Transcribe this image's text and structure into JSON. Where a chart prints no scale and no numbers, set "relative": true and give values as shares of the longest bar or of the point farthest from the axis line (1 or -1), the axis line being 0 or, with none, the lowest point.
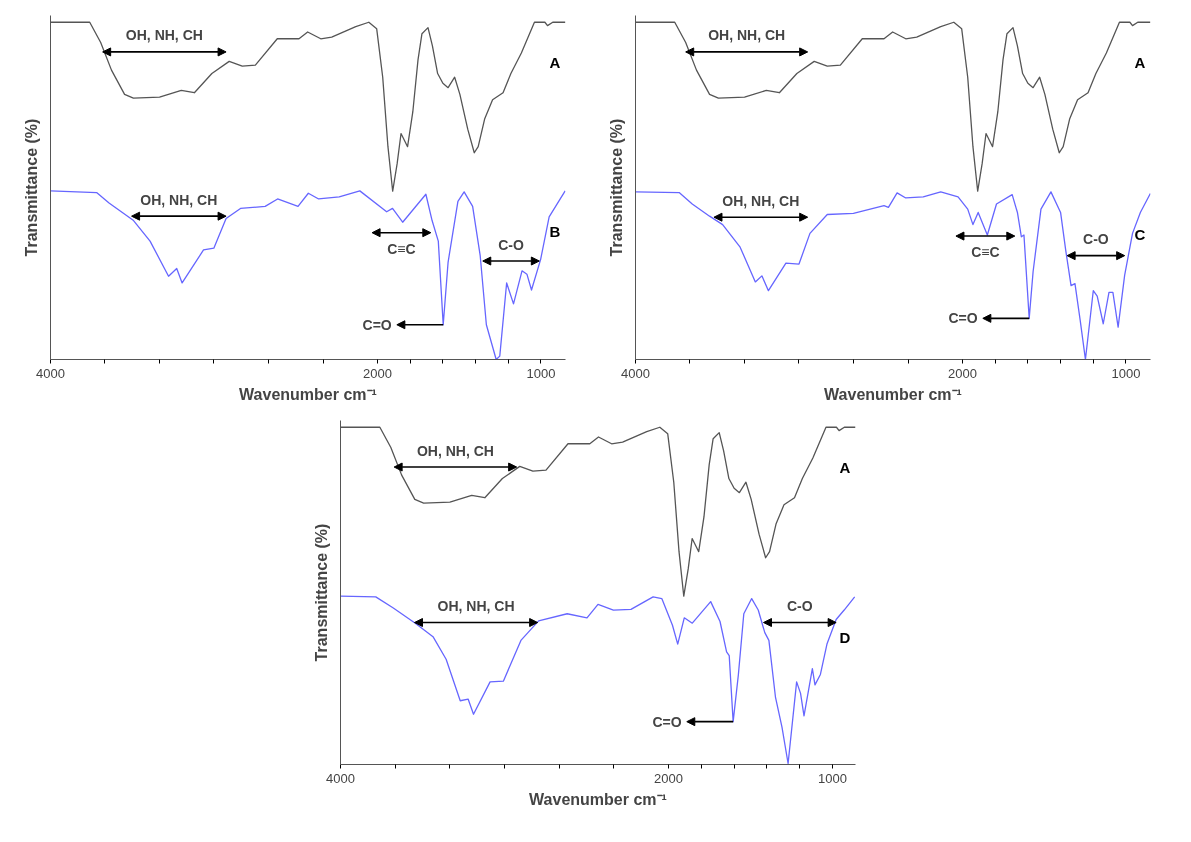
{
  "chart_data": [
    {
      "type": "line",
      "xlabel": "Wavenumber cm⁻¹",
      "ylabel": "Transmittance (%)",
      "relative": true,
      "xlim": [
        4000,
        850
      ],
      "xticks": [
        4000,
        {
          "value": 3667,
          "label": null
        },
        {
          "value": 3333,
          "label": null
        },
        {
          "value": 3000,
          "label": null
        },
        {
          "value": 2667,
          "label": null
        },
        {
          "value": 2333,
          "label": null
        },
        2000,
        {
          "value": 1800,
          "label": null
        },
        {
          "value": 1600,
          "label": null
        },
        {
          "value": 1400,
          "label": null
        },
        {
          "value": 1200,
          "label": null
        },
        1000
      ],
      "series": [
        {
          "name": "A",
          "color": "#555555",
          "x": [
            4000,
            3760,
            3693,
            3627,
            3547,
            3493,
            3333,
            3200,
            3120,
            3013,
            2907,
            2827,
            2747,
            2613,
            2480,
            2427,
            2347,
            2280,
            2133,
            2053,
            2005,
            1968,
            1936,
            1907,
            1880,
            1856,
            1816,
            1784,
            1752,
            1728,
            1691,
            1664,
            1632,
            1600,
            1568,
            1528,
            1496,
            1448,
            1408,
            1384,
            1344,
            1296,
            1232,
            1184,
            1120,
            1040,
            976,
            960,
            928,
            851
          ],
          "values": [
            1.0,
            1.0,
            0.94,
            0.858,
            0.786,
            0.775,
            0.778,
            0.798,
            0.791,
            0.848,
            0.884,
            0.87,
            0.873,
            0.951,
            0.951,
            0.971,
            0.951,
            0.956,
            0.987,
            1.0,
            0.981,
            0.837,
            0.631,
            0.499,
            0.58,
            0.67,
            0.631,
            0.734,
            0.889,
            0.966,
            0.984,
            0.93,
            0.848,
            0.819,
            0.806,
            0.837,
            0.786,
            0.683,
            0.613,
            0.631,
            0.714,
            0.77,
            0.791,
            0.848,
            0.909,
            1.0,
            1.0,
            0.99,
            1.0,
            1.0
          ]
        },
        {
          "name": "B",
          "color": "#6666ff",
          "x": [
            4000,
            3718,
            3642,
            3492,
            3391,
            3278,
            3228,
            3195,
            3064,
            3001,
            2926,
            2838,
            2687,
            2611,
            2486,
            2423,
            2360,
            2234,
            2108,
            1944,
            1908,
            1846,
            1704,
            1666,
            1628,
            1598,
            1568,
            1508,
            1470,
            1418,
            1372,
            1334,
            1274,
            1252,
            1210,
            1168,
            1116,
            1086,
            1058,
            1002,
            950,
            852
          ],
          "values": [
            0.5,
            0.495,
            0.464,
            0.412,
            0.351,
            0.247,
            0.27,
            0.227,
            0.325,
            0.33,
            0.418,
            0.448,
            0.454,
            0.476,
            0.454,
            0.493,
            0.476,
            0.482,
            0.5,
            0.438,
            0.448,
            0.407,
            0.49,
            0.412,
            0.351,
            0.103,
            0.289,
            0.469,
            0.497,
            0.454,
            0.309,
            0.103,
            0,
            0.01,
            0.227,
            0.165,
            0.263,
            0.253,
            0.206,
            0.297,
            0.423,
            0.5
          ]
        }
      ],
      "annotations": [
        "OH, NH, CH",
        "OH, NH, CH",
        "C≡C",
        "C-O",
        {
          "text": "C=O",
          "x": 1598,
          "y": 0.103
        }
      ]
    },
    {
      "type": "line",
      "xlabel": "Wavenumber cm⁻¹",
      "ylabel": "Transmittance (%)",
      "relative": true,
      "xlim": [
        4000,
        850
      ],
      "xticks": [
        4000,
        {
          "value": 3667,
          "label": null
        },
        {
          "value": 3333,
          "label": null
        },
        {
          "value": 3000,
          "label": null
        },
        {
          "value": 2667,
          "label": null
        },
        {
          "value": 2333,
          "label": null
        },
        2000,
        {
          "value": 1800,
          "label": null
        },
        {
          "value": 1600,
          "label": null
        },
        {
          "value": 1400,
          "label": null
        },
        {
          "value": 1200,
          "label": null
        },
        1000
      ],
      "series": [
        {
          "name": "A",
          "color": "#555555",
          "x": [
            4000,
            3760,
            3693,
            3627,
            3547,
            3493,
            3333,
            3200,
            3120,
            3013,
            2907,
            2827,
            2747,
            2613,
            2480,
            2427,
            2347,
            2280,
            2133,
            2053,
            2005,
            1968,
            1936,
            1907,
            1880,
            1856,
            1816,
            1784,
            1752,
            1728,
            1691,
            1664,
            1632,
            1600,
            1568,
            1528,
            1496,
            1448,
            1408,
            1384,
            1344,
            1296,
            1232,
            1184,
            1120,
            1040,
            976,
            960,
            928,
            851
          ],
          "values": [
            1.0,
            1.0,
            0.94,
            0.858,
            0.786,
            0.775,
            0.778,
            0.798,
            0.791,
            0.848,
            0.884,
            0.87,
            0.873,
            0.951,
            0.951,
            0.971,
            0.951,
            0.956,
            0.987,
            1.0,
            0.981,
            0.837,
            0.631,
            0.499,
            0.58,
            0.67,
            0.631,
            0.734,
            0.889,
            0.966,
            0.984,
            0.93,
            0.848,
            0.819,
            0.806,
            0.837,
            0.786,
            0.683,
            0.613,
            0.631,
            0.714,
            0.77,
            0.791,
            0.848,
            0.909,
            1.0,
            1.0,
            0.99,
            1.0,
            1.0
          ]
        },
        {
          "name": "C",
          "color": "#6666ff",
          "x": [
            4000,
            3733,
            3653,
            3547,
            3467,
            3360,
            3267,
            3227,
            3187,
            3080,
            3000,
            2933,
            2827,
            2667,
            2480,
            2453,
            2400,
            2347,
            2240,
            2133,
            2027,
            1968,
            1936,
            1904,
            1848,
            1792,
            1696,
            1664,
            1640,
            1624,
            1592,
            1568,
            1520,
            1459,
            1400,
            1368,
            1336,
            1312,
            1280,
            1248,
            1200,
            1176,
            1139,
            1104,
            1080,
            1048,
            1008,
            960,
            912,
            851
          ],
          "values": [
            0.497,
            0.495,
            0.461,
            0.425,
            0.4,
            0.333,
            0.23,
            0.248,
            0.204,
            0.286,
            0.283,
            0.374,
            0.43,
            0.433,
            0.456,
            0.451,
            0.494,
            0.479,
            0.482,
            0.497,
            0.482,
            0.446,
            0.4,
            0.436,
            0.369,
            0.461,
            0.489,
            0.436,
            0.364,
            0.369,
            0.122,
            0.261,
            0.446,
            0.497,
            0.436,
            0.322,
            0.219,
            0.225,
            0.116,
            0,
            0.204,
            0.188,
            0.106,
            0.199,
            0.199,
            0.096,
            0.25,
            0.374,
            0.436,
            0.492
          ]
        }
      ],
      "annotations": [
        "OH, NH, CH",
        "OH, NH, CH",
        "C≡C",
        "C-O",
        {
          "text": "C=O",
          "x": 1592,
          "y": 0.122
        }
      ]
    },
    {
      "type": "line",
      "xlabel": "Wavenumber cm⁻¹",
      "ylabel": "Transmittance (%)",
      "relative": true,
      "xlim": [
        4000,
        860
      ],
      "xticks": [
        4000,
        {
          "value": 3667,
          "label": null
        },
        {
          "value": 3333,
          "label": null
        },
        {
          "value": 3000,
          "label": null
        },
        {
          "value": 2667,
          "label": null
        },
        {
          "value": 2333,
          "label": null
        },
        2000,
        {
          "value": 1800,
          "label": null
        },
        {
          "value": 1600,
          "label": null
        },
        {
          "value": 1400,
          "label": null
        },
        {
          "value": 1200,
          "label": null
        },
        1000
      ],
      "series": [
        {
          "name": "A",
          "color": "#555555",
          "x": [
            4000,
            3760,
            3693,
            3627,
            3547,
            3493,
            3333,
            3200,
            3120,
            3013,
            2907,
            2827,
            2747,
            2613,
            2480,
            2427,
            2347,
            2280,
            2133,
            2053,
            2005,
            1968,
            1936,
            1907,
            1880,
            1856,
            1816,
            1784,
            1752,
            1728,
            1691,
            1664,
            1632,
            1600,
            1568,
            1528,
            1496,
            1448,
            1408,
            1384,
            1344,
            1296,
            1232,
            1184,
            1120,
            1040,
            976,
            960,
            928,
            860
          ],
          "values": [
            1.0,
            1.0,
            0.94,
            0.858,
            0.786,
            0.775,
            0.778,
            0.798,
            0.791,
            0.848,
            0.884,
            0.87,
            0.873,
            0.951,
            0.951,
            0.971,
            0.951,
            0.956,
            0.987,
            1.0,
            0.981,
            0.837,
            0.631,
            0.499,
            0.58,
            0.67,
            0.631,
            0.734,
            0.889,
            0.966,
            0.984,
            0.93,
            0.848,
            0.819,
            0.806,
            0.837,
            0.786,
            0.683,
            0.613,
            0.631,
            0.714,
            0.77,
            0.791,
            0.848,
            0.909,
            1.0,
            1.0,
            0.99,
            1.0,
            1.0
          ]
        },
        {
          "name": "D",
          "color": "#6666ff",
          "x": [
            4000,
            3785,
            3678,
            3544,
            3436,
            3356,
            3270,
            3222,
            3189,
            3088,
            3007,
            2900,
            2792,
            2618,
            2497,
            2430,
            2336,
            2229,
            2094,
            2041,
            1976,
            1944,
            1904,
            1855,
            1743,
            1686,
            1646,
            1630,
            1606,
            1574,
            1541,
            1493,
            1453,
            1413,
            1388,
            1348,
            1308,
            1271,
            1219,
            1195,
            1174,
            1123,
            1107,
            1074,
            1034,
            978,
            929,
            865
          ],
          "values": [
            0.499,
            0.497,
            0.464,
            0.419,
            0.379,
            0.312,
            0.189,
            0.194,
            0.149,
            0.245,
            0.247,
            0.368,
            0.426,
            0.447,
            0.435,
            0.475,
            0.458,
            0.46,
            0.497,
            0.492,
            0.413,
            0.357,
            0.435,
            0.419,
            0.483,
            0.424,
            0.334,
            0.323,
            0.127,
            0.267,
            0.447,
            0.492,
            0.458,
            0.391,
            0.368,
            0.2,
            0.11,
            0.003,
            0.245,
            0.211,
            0.144,
            0.284,
            0.236,
            0.267,
            0.357,
            0.43,
            0.458,
            0.497
          ]
        }
      ],
      "annotations": [
        "OH, NH, CH",
        "OH, NH, CH",
        "C-O",
        {
          "text": "C=O",
          "x": 1606,
          "y": 0.127
        }
      ]
    }
  ]
}
